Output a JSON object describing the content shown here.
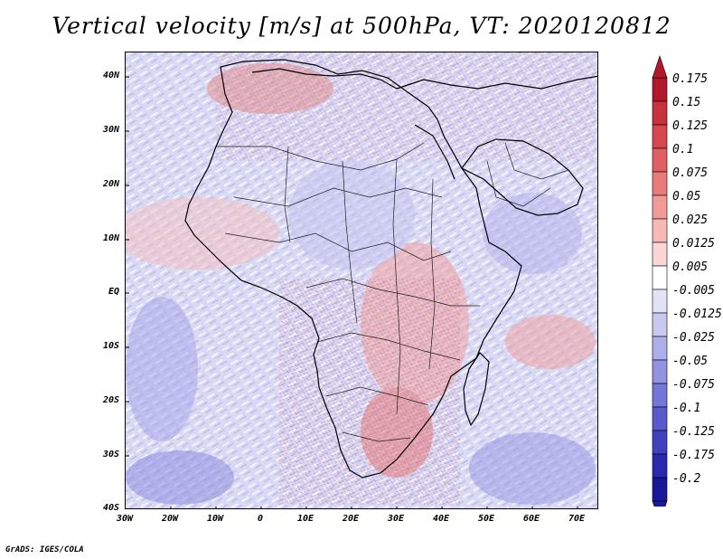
{
  "title": "Vertical velocity [m/s] at 500hPa, VT: 2020120812",
  "map": {
    "variable": "Vertical velocity",
    "units": "m/s",
    "level": "500hPa",
    "valid_time": "2020120812",
    "region": "Africa",
    "lat_labels": [
      "40N",
      "30N",
      "20N",
      "10N",
      "EQ",
      "10S",
      "20S",
      "30S",
      "40S"
    ],
    "lon_labels": [
      "30W",
      "20W",
      "10W",
      "0",
      "10E",
      "20E",
      "30E",
      "40E",
      "50E",
      "60E",
      "70E"
    ]
  },
  "colorbar": {
    "levels": [
      "0.175",
      "0.15",
      "0.125",
      "0.1",
      "0.075",
      "0.05",
      "0.025",
      "0.0125",
      "0.005",
      "-0.005",
      "-0.0125",
      "-0.025",
      "-0.05",
      "-0.075",
      "-0.1",
      "-0.125",
      "-0.175",
      "-0.2"
    ],
    "colors": [
      "#b2182b",
      "#c8323c",
      "#d6474e",
      "#e05f63",
      "#ea7b7b",
      "#f19a98",
      "#f6b9b6",
      "#fad6d4",
      "#ffffff",
      "#e3e3f7",
      "#c9c9f0",
      "#aeaeea",
      "#9292e2",
      "#7676d8",
      "#5a5acc",
      "#4040c0",
      "#2a2ab0",
      "#18189a"
    ]
  },
  "credit": "GrADS: IGES/COLA"
}
